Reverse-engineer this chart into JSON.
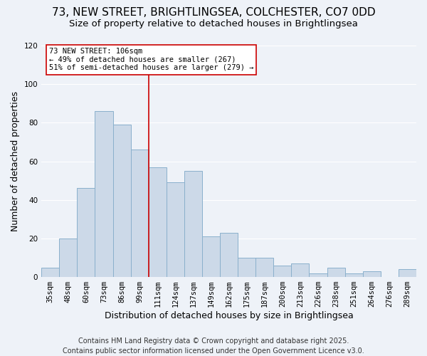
{
  "title": "73, NEW STREET, BRIGHTLINGSEA, COLCHESTER, CO7 0DD",
  "subtitle": "Size of property relative to detached houses in Brightlingsea",
  "xlabel": "Distribution of detached houses by size in Brightlingsea",
  "ylabel": "Number of detached properties",
  "bar_labels": [
    "35sqm",
    "48sqm",
    "60sqm",
    "73sqm",
    "86sqm",
    "99sqm",
    "111sqm",
    "124sqm",
    "137sqm",
    "149sqm",
    "162sqm",
    "175sqm",
    "187sqm",
    "200sqm",
    "213sqm",
    "226sqm",
    "238sqm",
    "251sqm",
    "264sqm",
    "276sqm",
    "289sqm"
  ],
  "bar_values": [
    5,
    20,
    46,
    86,
    79,
    66,
    57,
    49,
    55,
    21,
    23,
    10,
    10,
    6,
    7,
    2,
    5,
    2,
    3,
    0,
    4
  ],
  "bar_color": "#ccd9e8",
  "bar_edge_color": "#8ab0cc",
  "vline_x": 5.5,
  "vline_color": "#cc0000",
  "ylim": [
    0,
    120
  ],
  "yticks": [
    0,
    20,
    40,
    60,
    80,
    100,
    120
  ],
  "annotation_title": "73 NEW STREET: 106sqm",
  "annotation_line1": "← 49% of detached houses are smaller (267)",
  "annotation_line2": "51% of semi-detached houses are larger (279) →",
  "annotation_box_facecolor": "#ffffff",
  "annotation_box_edgecolor": "#cc0000",
  "footer1": "Contains HM Land Registry data © Crown copyright and database right 2025.",
  "footer2": "Contains public sector information licensed under the Open Government Licence v3.0.",
  "bg_color": "#eef2f8",
  "grid_color": "#ffffff",
  "title_fontsize": 11,
  "subtitle_fontsize": 9.5,
  "axis_label_fontsize": 9,
  "tick_fontsize": 7.5,
  "annotation_fontsize": 7.5,
  "footer_fontsize": 7
}
